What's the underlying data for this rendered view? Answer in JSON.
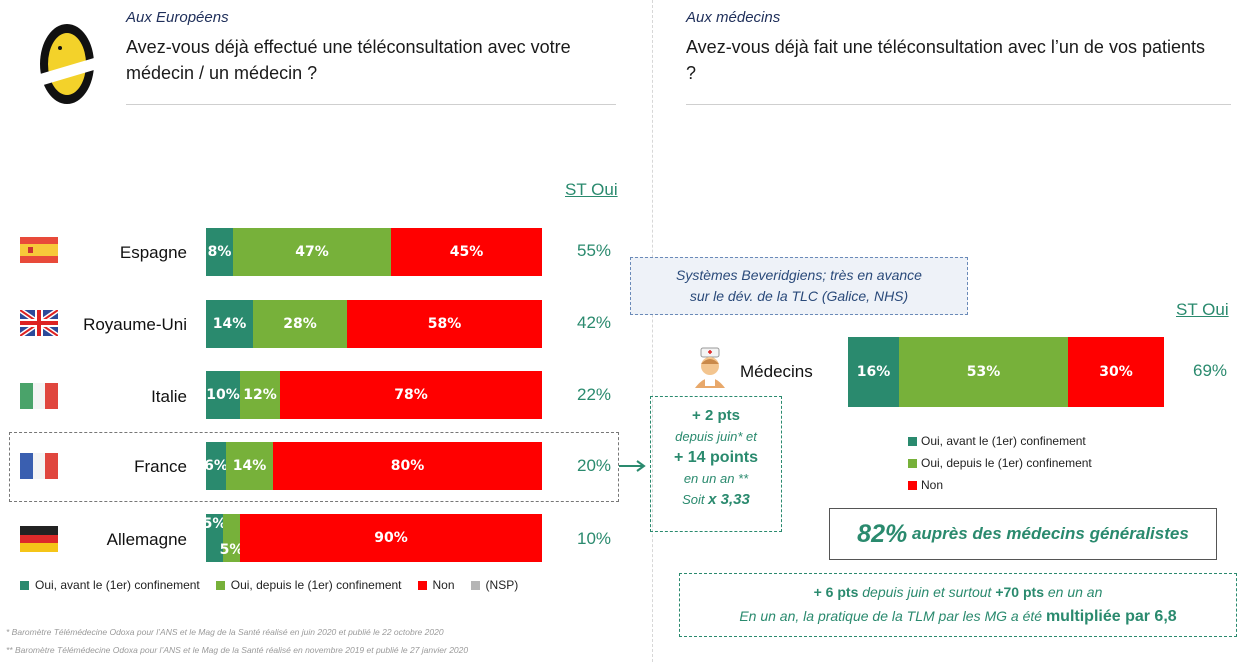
{
  "left": {
    "intro": "Aux Européens",
    "question": "Avez-vous déjà effectué une téléconsultation avec votre médecin / un médecin ?",
    "st_header": "ST Oui"
  },
  "right": {
    "intro": "Aux médecins",
    "question": "Avez-vous déjà fait une téléconsultation avec l’un de vos patients ?",
    "st_header": "ST Oui"
  },
  "colors": {
    "before": "#2a8a6e",
    "since": "#77b13a",
    "non": "#ff0000",
    "nsp": "#b5b5b5",
    "accent": "#2a8a6e"
  },
  "chart_data": [
    {
      "type": "bar",
      "orientation": "horizontal",
      "stacked": true,
      "categories": [
        "Espagne",
        "Royaume-Uni",
        "Italie",
        "France",
        "Allemagne"
      ],
      "series": [
        {
          "name": "Oui, avant le (1er) confinement",
          "values": [
            8,
            14,
            10,
            6,
            5
          ]
        },
        {
          "name": "Oui, depuis le (1er)  confinement",
          "values": [
            47,
            28,
            12,
            14,
            5
          ]
        },
        {
          "name": "Non",
          "values": [
            45,
            58,
            78,
            80,
            90
          ]
        },
        {
          "name": "(NSP)",
          "values": [
            0,
            0,
            0,
            0,
            0
          ]
        }
      ],
      "labels": [
        [
          "8%",
          "47%",
          "45%"
        ],
        [
          "14%",
          "28%",
          "58%"
        ],
        [
          "10%",
          "12%",
          "78%"
        ],
        [
          "6%",
          "14%",
          "80%"
        ],
        [
          "5%",
          "5%",
          "90%"
        ]
      ],
      "st_oui": [
        "55%",
        "42%",
        "22%",
        "20%",
        "10%"
      ],
      "flags": [
        "flag-spain-icon",
        "flag-uk-icon",
        "flag-italy-icon",
        "flag-france-icon",
        "flag-germany-icon"
      ],
      "xlim": [
        0,
        100
      ]
    },
    {
      "type": "bar",
      "orientation": "horizontal",
      "stacked": true,
      "categories": [
        "Médecins"
      ],
      "series": [
        {
          "name": "Oui, avant le (1er) confinement",
          "values": [
            16
          ]
        },
        {
          "name": "Oui, depuis le (1er) confinement",
          "values": [
            53
          ]
        },
        {
          "name": "Non",
          "values": [
            30
          ]
        }
      ],
      "labels": [
        [
          "16%",
          "53%",
          "30%"
        ]
      ],
      "st_oui": [
        "69%"
      ],
      "xlim": [
        0,
        100
      ]
    }
  ],
  "france_note": {
    "l1": "+ 2 pts",
    "l2": "depuis juin* et",
    "l3": "+ 14 points",
    "l4": "en un an **",
    "l5a": "Soit ",
    "l5b": "x 3,33"
  },
  "bev_note": {
    "l1": "Systèmes Beveridgiens; très en avance",
    "l2": "sur le dév. de la TLC (Galice, NHS)"
  },
  "right_legend": [
    "Oui, avant le (1er) confinement",
    "Oui, depuis le (1er) confinement",
    "Non"
  ],
  "gp_box": {
    "big": "82%",
    "rest": " auprès des médecins généralistes"
  },
  "bottom_note": {
    "l1a": "+ 6 pts",
    "l1b": " depuis juin et surtout ",
    "l1c": "+70 pts",
    "l1d": " en un an",
    "l2a": "En un an, la pratique de la TLM par les MG a été ",
    "l2b": "multipliée par 6,8"
  },
  "footnotes": [
    "* Baromètre Télémédecine Odoxa pour l’ANS et le Mag de la Santé réalisé en juin 2020 et publié le 22 octobre 2020",
    "** Baromètre Télémédecine Odoxa pour l’ANS et le Mag de la Santé réalisé en novembre 2019 et publié le 27 janvier 2020"
  ]
}
